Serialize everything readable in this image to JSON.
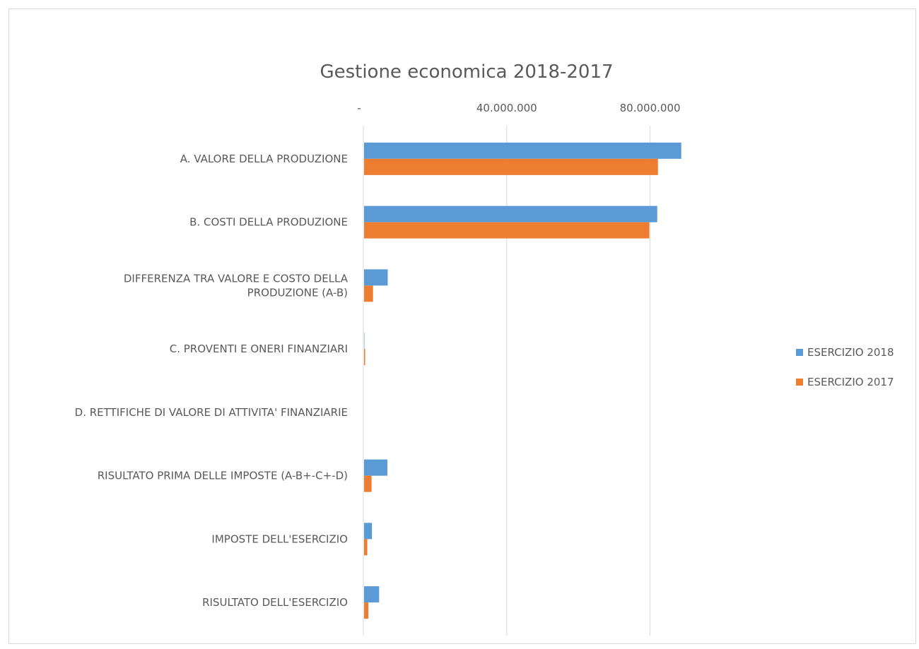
{
  "chart_data": {
    "type": "bar",
    "orientation": "horizontal",
    "title": "Gestione economica 2018-2017",
    "xlim": [
      0,
      100000000
    ],
    "tick_values": [
      0,
      40000000,
      80000000
    ],
    "tick_labels": [
      "-",
      "40.000.000",
      "80.000.000"
    ],
    "grid": true,
    "legend_position": "right",
    "categories": [
      [
        "A. VALORE DELLA PRODUZIONE"
      ],
      [
        "B. COSTI DELLA PRODUZIONE"
      ],
      [
        "DIFFERENZA TRA VALORE E COSTO DELLA",
        "PRODUZIONE (A-B)"
      ],
      [
        "C. PROVENTI E ONERI FINANZIARI"
      ],
      [
        "D. RETTIFICHE DI VALORE DI ATTIVITA' FINANZIARIE"
      ],
      [
        "RISULTATO PRIMA DELLE IMPOSTE (A-B+-C+-D)"
      ],
      [
        "IMPOSTE DELL'ESERCIZIO"
      ],
      [
        "RISULTATO DELL'ESERCIZIO"
      ]
    ],
    "series": [
      {
        "name": "ESERCIZIO 2018",
        "color": "#5b9bd5",
        "values": [
          88500000,
          81800000,
          6600000,
          100000,
          0,
          6500000,
          2200000,
          4200000
        ]
      },
      {
        "name": "ESERCIZIO 2017",
        "color": "#ed7d31",
        "values": [
          82000000,
          79600000,
          2500000,
          300000,
          0,
          2100000,
          900000,
          1200000
        ]
      }
    ]
  }
}
